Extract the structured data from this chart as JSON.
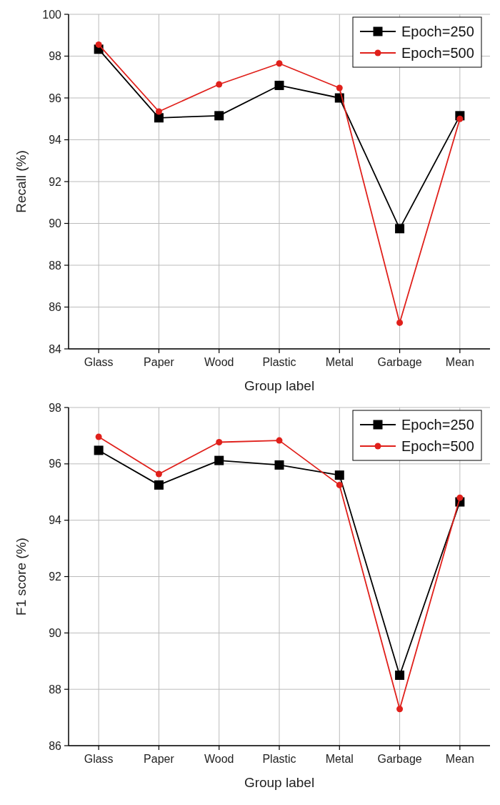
{
  "chart_data": [
    {
      "type": "line",
      "ylabel": "Recall (%)",
      "xlabel": "Group label",
      "categories": [
        "Glass",
        "Paper",
        "Wood",
        "Plastic",
        "Metal",
        "Garbage",
        "Mean"
      ],
      "series": [
        {
          "name": "Epoch=250",
          "color": "#000000",
          "marker": "square",
          "values": [
            98.33,
            95.05,
            95.15,
            96.6,
            96.0,
            89.75,
            95.15
          ]
        },
        {
          "name": "Epoch=500",
          "color": "#e0201b",
          "marker": "circle",
          "values": [
            98.55,
            95.35,
            96.65,
            97.65,
            96.48,
            85.25,
            95.0
          ]
        }
      ],
      "ylim": [
        84,
        100
      ],
      "yticks": [
        84,
        86,
        88,
        90,
        92,
        94,
        96,
        98,
        100
      ],
      "grid": true,
      "legend": "top right"
    },
    {
      "type": "line",
      "ylabel": "F1 score (%)",
      "xlabel": "Group label",
      "categories": [
        "Glass",
        "Paper",
        "Wood",
        "Plastic",
        "Metal",
        "Garbage",
        "Mean"
      ],
      "series": [
        {
          "name": "Epoch=250",
          "color": "#000000",
          "marker": "square",
          "values": [
            96.48,
            95.25,
            96.12,
            95.96,
            95.6,
            88.5,
            94.65
          ]
        },
        {
          "name": "Epoch=500",
          "color": "#e0201b",
          "marker": "circle",
          "values": [
            96.96,
            95.64,
            96.77,
            96.83,
            95.25,
            87.3,
            94.8
          ]
        }
      ],
      "ylim": [
        86,
        98
      ],
      "yticks": [
        86,
        88,
        90,
        92,
        94,
        96,
        98
      ],
      "grid": true,
      "legend": "top right"
    }
  ]
}
